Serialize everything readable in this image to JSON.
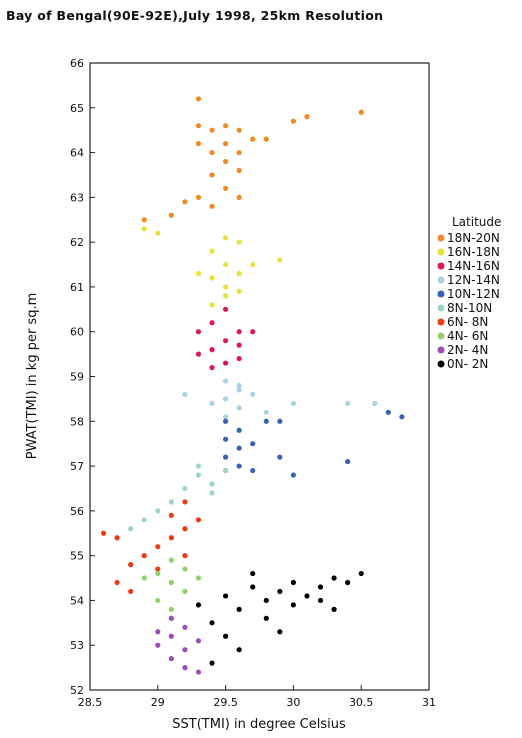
{
  "chart_data": {
    "type": "scatter",
    "title": "Bay of Bengal(90E-92E),July 1998, 25km Resolution",
    "xlabel": "SST(TMI) in degree Celsius",
    "ylabel": "PWAT(TMI) in kg per sq.m",
    "xlim": [
      28.5,
      31
    ],
    "ylim": [
      52,
      66
    ],
    "x_ticks": [
      "28.5",
      "29",
      "29.5",
      "30",
      "30.5",
      "31"
    ],
    "y_ticks": [
      "52",
      "53",
      "54",
      "55",
      "56",
      "57",
      "58",
      "59",
      "60",
      "61",
      "62",
      "63",
      "64",
      "65",
      "66"
    ],
    "grid": false,
    "legend_title": "Latitude",
    "legend_position": "right",
    "series": [
      {
        "name": "18N-20N",
        "color": "#f08a24",
        "points": [
          [
            29.3,
            65.2
          ],
          [
            29.3,
            64.6
          ],
          [
            29.4,
            64.5
          ],
          [
            29.5,
            64.6
          ],
          [
            29.6,
            64.5
          ],
          [
            29.3,
            64.2
          ],
          [
            29.4,
            64.0
          ],
          [
            29.5,
            64.2
          ],
          [
            29.6,
            64.0
          ],
          [
            29.7,
            64.3
          ],
          [
            29.5,
            63.8
          ],
          [
            29.4,
            63.5
          ],
          [
            29.6,
            63.6
          ],
          [
            29.3,
            63.0
          ],
          [
            29.5,
            63.2
          ],
          [
            29.4,
            62.8
          ],
          [
            29.2,
            62.9
          ],
          [
            29.1,
            62.6
          ],
          [
            28.9,
            62.5
          ],
          [
            29.6,
            63.0
          ],
          [
            29.8,
            64.3
          ],
          [
            30.0,
            64.7
          ],
          [
            30.1,
            64.8
          ],
          [
            30.5,
            64.9
          ]
        ]
      },
      {
        "name": "16N-18N",
        "color": "#e4e43a",
        "points": [
          [
            29.5,
            62.1
          ],
          [
            29.4,
            61.8
          ],
          [
            29.5,
            61.5
          ],
          [
            29.6,
            61.3
          ],
          [
            29.4,
            61.2
          ],
          [
            29.5,
            61.0
          ],
          [
            29.6,
            60.9
          ],
          [
            29.3,
            61.3
          ],
          [
            29.5,
            60.8
          ],
          [
            29.7,
            61.5
          ],
          [
            29.4,
            60.6
          ],
          [
            29.0,
            62.2
          ],
          [
            28.9,
            62.3
          ],
          [
            29.6,
            62.0
          ],
          [
            29.9,
            61.6
          ]
        ]
      },
      {
        "name": "14N-16N",
        "color": "#d9195a",
        "points": [
          [
            29.5,
            60.5
          ],
          [
            29.4,
            60.2
          ],
          [
            29.6,
            60.0
          ],
          [
            29.5,
            59.8
          ],
          [
            29.4,
            59.6
          ],
          [
            29.3,
            59.5
          ],
          [
            29.5,
            59.3
          ],
          [
            29.6,
            59.4
          ],
          [
            29.4,
            59.2
          ],
          [
            29.7,
            60.0
          ],
          [
            29.3,
            60.0
          ],
          [
            29.6,
            59.7
          ]
        ]
      },
      {
        "name": "12N-14N",
        "color": "#a8d4de",
        "points": [
          [
            29.5,
            58.9
          ],
          [
            29.6,
            58.7
          ],
          [
            29.5,
            58.5
          ],
          [
            29.6,
            58.3
          ],
          [
            29.7,
            58.6
          ],
          [
            29.4,
            58.4
          ],
          [
            29.8,
            58.2
          ],
          [
            30.0,
            58.4
          ],
          [
            29.2,
            58.6
          ],
          [
            30.4,
            58.4
          ],
          [
            30.6,
            58.4
          ],
          [
            29.6,
            58.8
          ],
          [
            29.5,
            58.1
          ]
        ]
      },
      {
        "name": "10N-12N",
        "color": "#3a62b4",
        "points": [
          [
            29.5,
            58.0
          ],
          [
            29.6,
            57.8
          ],
          [
            29.5,
            57.6
          ],
          [
            29.6,
            57.4
          ],
          [
            29.5,
            57.2
          ],
          [
            29.6,
            57.0
          ],
          [
            29.5,
            56.9
          ],
          [
            29.7,
            57.5
          ],
          [
            29.8,
            58.0
          ],
          [
            29.9,
            58.0
          ],
          [
            30.7,
            58.2
          ],
          [
            30.8,
            58.1
          ],
          [
            30.4,
            57.1
          ],
          [
            29.9,
            57.2
          ],
          [
            30.0,
            56.8
          ],
          [
            29.7,
            56.9
          ]
        ]
      },
      {
        "name": "8N-10N",
        "color": "#9ed6c0",
        "points": [
          [
            29.3,
            56.8
          ],
          [
            29.4,
            56.6
          ],
          [
            29.2,
            56.5
          ],
          [
            29.5,
            56.9
          ],
          [
            29.1,
            56.2
          ],
          [
            29.0,
            56.0
          ],
          [
            28.9,
            55.8
          ],
          [
            29.3,
            57.0
          ],
          [
            29.4,
            56.4
          ],
          [
            28.8,
            55.6
          ]
        ]
      },
      {
        "name": "6N- 8N",
        "color": "#e83c14",
        "points": [
          [
            29.2,
            56.2
          ],
          [
            29.1,
            55.9
          ],
          [
            29.2,
            55.6
          ],
          [
            29.1,
            55.4
          ],
          [
            29.0,
            55.2
          ],
          [
            28.9,
            55.0
          ],
          [
            28.8,
            54.8
          ],
          [
            29.2,
            55.0
          ],
          [
            28.7,
            55.4
          ],
          [
            28.6,
            55.5
          ],
          [
            28.7,
            54.4
          ],
          [
            28.8,
            54.2
          ],
          [
            29.3,
            55.8
          ],
          [
            29.0,
            54.7
          ]
        ]
      },
      {
        "name": "4N- 6N",
        "color": "#8fd36b",
        "points": [
          [
            29.1,
            54.9
          ],
          [
            29.0,
            54.6
          ],
          [
            29.1,
            54.4
          ],
          [
            29.2,
            54.2
          ],
          [
            29.0,
            54.0
          ],
          [
            29.1,
            53.8
          ],
          [
            28.9,
            54.5
          ],
          [
            29.2,
            54.7
          ],
          [
            29.3,
            54.5
          ],
          [
            29.1,
            53.6
          ]
        ]
      },
      {
        "name": "2N- 4N",
        "color": "#9a4fb8",
        "points": [
          [
            29.1,
            53.6
          ],
          [
            29.2,
            53.4
          ],
          [
            29.1,
            53.2
          ],
          [
            29.0,
            53.0
          ],
          [
            29.2,
            52.9
          ],
          [
            29.1,
            52.7
          ],
          [
            29.3,
            53.1
          ],
          [
            29.2,
            52.5
          ],
          [
            29.3,
            52.4
          ],
          [
            29.0,
            53.3
          ]
        ]
      },
      {
        "name": "0N- 2N",
        "color": "#000000",
        "points": [
          [
            29.5,
            54.1
          ],
          [
            29.6,
            53.8
          ],
          [
            29.7,
            54.3
          ],
          [
            29.8,
            54.0
          ],
          [
            29.9,
            54.2
          ],
          [
            30.0,
            54.4
          ],
          [
            30.1,
            54.1
          ],
          [
            30.2,
            54.3
          ],
          [
            30.3,
            54.5
          ],
          [
            30.4,
            54.4
          ],
          [
            30.5,
            54.6
          ],
          [
            29.4,
            53.5
          ],
          [
            29.5,
            53.2
          ],
          [
            29.6,
            52.9
          ],
          [
            29.4,
            52.6
          ],
          [
            29.8,
            53.6
          ],
          [
            30.3,
            53.8
          ],
          [
            29.9,
            53.3
          ],
          [
            30.0,
            53.9
          ],
          [
            29.3,
            53.9
          ],
          [
            30.2,
            54.0
          ],
          [
            29.7,
            54.6
          ]
        ]
      }
    ]
  }
}
